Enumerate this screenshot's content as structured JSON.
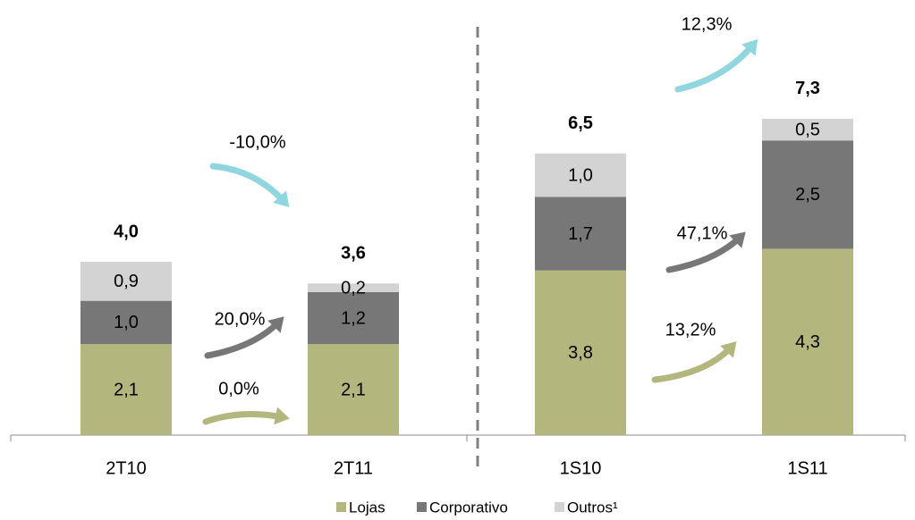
{
  "chart_data": {
    "type": "stacked_bar",
    "categories": [
      "2T10",
      "2T11",
      "1S10",
      "1S11"
    ],
    "series": [
      {
        "name": "Lojas",
        "color": "#b3b67d",
        "values": [
          2.1,
          2.1,
          3.8,
          4.3
        ],
        "value_labels": [
          "2,1",
          "2,1",
          "3,8",
          "4,3"
        ]
      },
      {
        "name": "Corporativo",
        "color": "#777777",
        "values": [
          1.0,
          1.2,
          1.7,
          2.5
        ],
        "value_labels": [
          "1,0",
          "1,2",
          "1,7",
          "2,5"
        ]
      },
      {
        "name": "Outros¹",
        "color": "#d3d3d3",
        "values": [
          0.9,
          0.2,
          1.0,
          0.5
        ],
        "value_labels": [
          "0,9",
          "0,2",
          "1,0",
          "0,5"
        ]
      }
    ],
    "totals": [
      4.0,
      3.6,
      6.5,
      7.3
    ],
    "total_labels": [
      "4,0",
      "3,6",
      "6,5",
      "7,3"
    ],
    "annotations": [
      {
        "text": "-10,0%",
        "color": "#8fd6de"
      },
      {
        "text": "20,0%",
        "color": "#777777"
      },
      {
        "text": "0,0%",
        "color": "#b3b67d"
      },
      {
        "text": "12,3%",
        "color": "#8fd6de"
      },
      {
        "text": "47,1%",
        "color": "#777777"
      },
      {
        "text": "13,2%",
        "color": "#b3b67d"
      }
    ],
    "ylim": [
      0,
      10
    ]
  }
}
